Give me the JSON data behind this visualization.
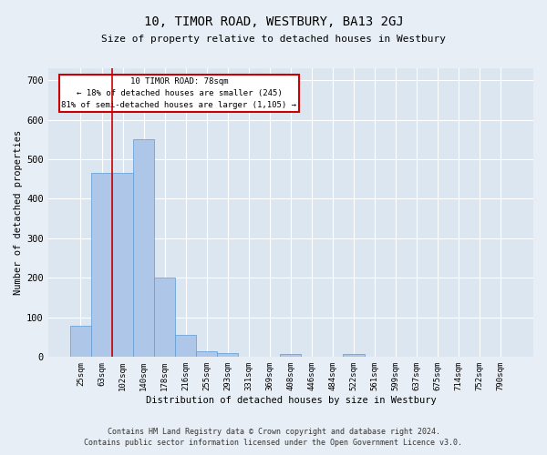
{
  "title": "10, TIMOR ROAD, WESTBURY, BA13 2GJ",
  "subtitle": "Size of property relative to detached houses in Westbury",
  "xlabel": "Distribution of detached houses by size in Westbury",
  "ylabel": "Number of detached properties",
  "categories": [
    "25sqm",
    "63sqm",
    "102sqm",
    "140sqm",
    "178sqm",
    "216sqm",
    "255sqm",
    "293sqm",
    "331sqm",
    "369sqm",
    "408sqm",
    "446sqm",
    "484sqm",
    "522sqm",
    "561sqm",
    "599sqm",
    "637sqm",
    "675sqm",
    "714sqm",
    "752sqm",
    "790sqm"
  ],
  "values": [
    78,
    465,
    465,
    550,
    200,
    57,
    15,
    10,
    0,
    0,
    8,
    0,
    0,
    8,
    0,
    0,
    0,
    0,
    0,
    0,
    0
  ],
  "bar_color": "#aec6e8",
  "bar_edge_color": "#5b9bd5",
  "property_line_x": 1.5,
  "property_line_color": "#cc0000",
  "annotation_text": "10 TIMOR ROAD: 78sqm\n← 18% of detached houses are smaller (245)\n81% of semi-detached houses are larger (1,105) →",
  "annotation_box_color": "#cc0000",
  "background_color": "#e8eef5",
  "plot_bg_color": "#dce6f1",
  "footer1": "Contains HM Land Registry data © Crown copyright and database right 2024.",
  "footer2": "Contains public sector information licensed under the Open Government Licence v3.0.",
  "ylim": [
    0,
    730
  ],
  "yticks": [
    0,
    100,
    200,
    300,
    400,
    500,
    600,
    700
  ]
}
